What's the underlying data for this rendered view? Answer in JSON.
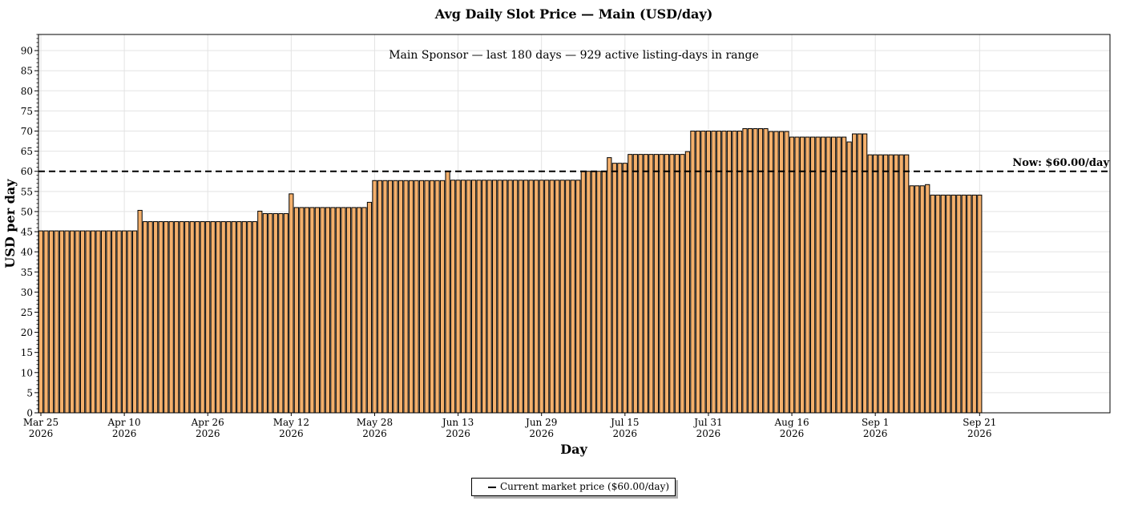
{
  "chart_data": {
    "type": "bar",
    "title": "Avg Daily Slot Price — Main (USD/day)",
    "subtitle": "Main Sponsor — last 180 days — 929 active listing-days in range",
    "xlabel": "Day",
    "ylabel": "USD per day",
    "ylim": [
      0,
      94
    ],
    "xlim": [
      "2026-03-25",
      "2026-10-16"
    ],
    "yticks": [
      0,
      5,
      10,
      15,
      20,
      25,
      30,
      35,
      40,
      45,
      50,
      55,
      60,
      65,
      70,
      75,
      80,
      85,
      90
    ],
    "xticks": [
      {
        "date": "2026-03-25",
        "label1": "Mar 25",
        "label2": "2026"
      },
      {
        "date": "2026-04-10",
        "label1": "Apr 10",
        "label2": "2026"
      },
      {
        "date": "2026-04-26",
        "label1": "Apr 26",
        "label2": "2026"
      },
      {
        "date": "2026-05-12",
        "label1": "May 12",
        "label2": "2026"
      },
      {
        "date": "2026-05-28",
        "label1": "May 28",
        "label2": "2026"
      },
      {
        "date": "2026-06-13",
        "label1": "Jun 13",
        "label2": "2026"
      },
      {
        "date": "2026-06-29",
        "label1": "Jun 29",
        "label2": "2026"
      },
      {
        "date": "2026-07-15",
        "label1": "Jul 15",
        "label2": "2026"
      },
      {
        "date": "2026-07-31",
        "label1": "Jul 31",
        "label2": "2026"
      },
      {
        "date": "2026-08-16",
        "label1": "Aug 16",
        "label2": "2026"
      },
      {
        "date": "2026-09-01",
        "label1": "Sep 1",
        "label2": "2026"
      },
      {
        "date": "2026-09-21",
        "label1": "Sep 21",
        "label2": "2026"
      }
    ],
    "grid": true,
    "bar_color": "#f4b06c",
    "bar_edge_color": "#000000",
    "segments": [
      {
        "start": "2026-03-25",
        "end": "2026-04-12",
        "value": 45.2
      },
      {
        "start": "2026-04-13",
        "end": "2026-04-13",
        "value": 50.3
      },
      {
        "start": "2026-04-14",
        "end": "2026-05-05",
        "value": 47.5
      },
      {
        "start": "2026-05-06",
        "end": "2026-05-06",
        "value": 50.1
      },
      {
        "start": "2026-05-07",
        "end": "2026-05-11",
        "value": 49.5
      },
      {
        "start": "2026-05-12",
        "end": "2026-05-12",
        "value": 54.4
      },
      {
        "start": "2026-05-13",
        "end": "2026-05-26",
        "value": 51.0
      },
      {
        "start": "2026-05-27",
        "end": "2026-05-27",
        "value": 52.3
      },
      {
        "start": "2026-05-28",
        "end": "2026-06-10",
        "value": 57.7
      },
      {
        "start": "2026-06-11",
        "end": "2026-06-11",
        "value": 60.0
      },
      {
        "start": "2026-06-12",
        "end": "2026-07-06",
        "value": 57.8
      },
      {
        "start": "2026-07-07",
        "end": "2026-07-11",
        "value": 60.0
      },
      {
        "start": "2026-07-12",
        "end": "2026-07-12",
        "value": 63.4
      },
      {
        "start": "2026-07-13",
        "end": "2026-07-15",
        "value": 62.0
      },
      {
        "start": "2026-07-16",
        "end": "2026-07-26",
        "value": 64.2
      },
      {
        "start": "2026-07-27",
        "end": "2026-07-27",
        "value": 64.9
      },
      {
        "start": "2026-07-28",
        "end": "2026-08-06",
        "value": 70.0
      },
      {
        "start": "2026-08-07",
        "end": "2026-08-11",
        "value": 70.6
      },
      {
        "start": "2026-08-12",
        "end": "2026-08-15",
        "value": 69.9
      },
      {
        "start": "2026-08-16",
        "end": "2026-08-26",
        "value": 68.5
      },
      {
        "start": "2026-08-27",
        "end": "2026-08-27",
        "value": 67.3
      },
      {
        "start": "2026-08-28",
        "end": "2026-08-30",
        "value": 69.3
      },
      {
        "start": "2026-08-31",
        "end": "2026-09-07",
        "value": 64.1
      },
      {
        "start": "2026-09-08",
        "end": "2026-09-10",
        "value": 56.4
      },
      {
        "start": "2026-09-11",
        "end": "2026-09-11",
        "value": 56.7
      },
      {
        "start": "2026-09-12",
        "end": "2026-09-21",
        "value": 54.1
      }
    ],
    "reference_line": {
      "value": 60.0,
      "label": "Now: $60.00/day",
      "legend_label": "Current market price ($60.00/day)",
      "color": "#000000",
      "style": "dashed"
    },
    "legend_position": "bottom-center"
  }
}
